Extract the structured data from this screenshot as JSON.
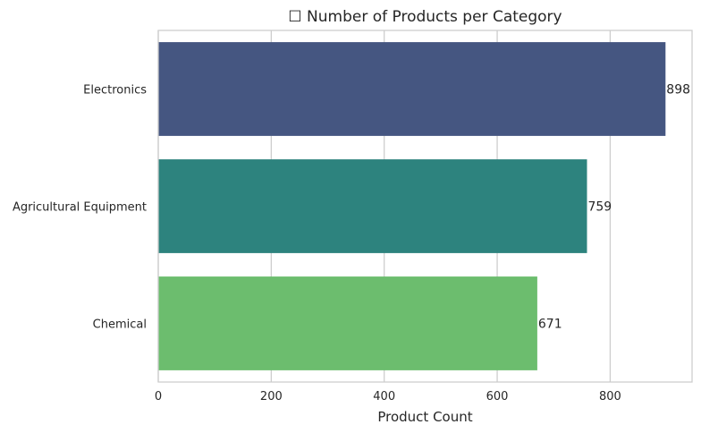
{
  "chart_data": {
    "type": "bar",
    "orientation": "horizontal",
    "title": "☐ Number of Products per Category",
    "xlabel": "Product Count",
    "ylabel": "",
    "categories": [
      "Electronics",
      "Agricultural Equipment",
      "Chemical"
    ],
    "values": [
      898,
      759,
      671
    ],
    "value_labels": [
      "898",
      "759",
      "671"
    ],
    "colors": [
      "#455681",
      "#2d837e",
      "#6cbd6e"
    ],
    "xlim": [
      0,
      945
    ],
    "xticks": [
      0,
      200,
      400,
      600,
      800
    ],
    "xtick_labels": [
      "0",
      "200",
      "400",
      "600",
      "800"
    ],
    "grid": true,
    "legend": false
  }
}
